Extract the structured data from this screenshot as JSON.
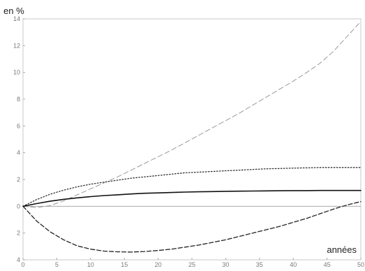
{
  "chart_data": {
    "type": "line",
    "title": "",
    "ylabel": "en %",
    "xlabel": "années",
    "xlim": [
      0,
      50
    ],
    "ylim": [
      -4,
      14
    ],
    "x_ticks": [
      0,
      5,
      10,
      15,
      20,
      25,
      30,
      35,
      40,
      45,
      50
    ],
    "y_ticks": [
      -4,
      -2,
      0,
      2,
      4,
      6,
      8,
      10,
      12,
      14
    ],
    "y_tick_labels": [
      "4",
      "2",
      "0",
      "2",
      "4",
      "6",
      "8",
      "10",
      "12",
      "14"
    ],
    "grid": false,
    "legend": "none",
    "x": [
      0,
      2,
      4,
      6,
      8,
      10,
      12,
      14,
      16,
      18,
      20,
      22,
      24,
      26,
      28,
      30,
      32,
      34,
      36,
      38,
      40,
      42,
      44,
      46,
      48,
      50
    ],
    "series": [
      {
        "style": "long-dashed-light",
        "color": "#9a9a9a",
        "values": [
          0,
          -0.1,
          0.05,
          0.4,
          0.85,
          1.3,
          1.75,
          2.2,
          2.7,
          3.2,
          3.7,
          4.2,
          4.75,
          5.3,
          5.85,
          6.4,
          6.95,
          7.55,
          8.15,
          8.75,
          9.35,
          10.0,
          10.7,
          11.6,
          12.7,
          13.8
        ]
      },
      {
        "style": "dotted",
        "color": "#333333",
        "values": [
          0,
          0.5,
          0.9,
          1.2,
          1.45,
          1.65,
          1.8,
          1.95,
          2.1,
          2.2,
          2.3,
          2.4,
          2.5,
          2.55,
          2.6,
          2.65,
          2.7,
          2.75,
          2.8,
          2.82,
          2.85,
          2.87,
          2.9,
          2.9,
          2.9,
          2.9
        ]
      },
      {
        "style": "solid",
        "color": "#111111",
        "values": [
          0,
          0.2,
          0.38,
          0.52,
          0.63,
          0.72,
          0.8,
          0.86,
          0.92,
          0.97,
          1.0,
          1.03,
          1.06,
          1.08,
          1.1,
          1.12,
          1.13,
          1.14,
          1.15,
          1.16,
          1.17,
          1.17,
          1.18,
          1.18,
          1.18,
          1.18
        ]
      },
      {
        "style": "dashed",
        "color": "#222222",
        "values": [
          0,
          -1.1,
          -1.9,
          -2.5,
          -2.95,
          -3.2,
          -3.35,
          -3.4,
          -3.42,
          -3.38,
          -3.3,
          -3.2,
          -3.05,
          -2.9,
          -2.7,
          -2.5,
          -2.25,
          -2.0,
          -1.75,
          -1.5,
          -1.2,
          -0.9,
          -0.55,
          -0.2,
          0.1,
          0.35
        ]
      }
    ]
  }
}
